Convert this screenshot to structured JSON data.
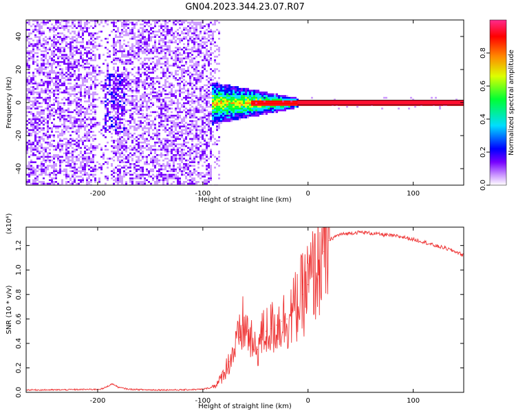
{
  "title": "GN04.2023.344.23.07.R07",
  "chart_data": [
    {
      "type": "heatmap",
      "xlabel": "Height of straight line (km)",
      "ylabel": "Frequency (Hz)",
      "xlim": [
        -268,
        148
      ],
      "ylim": [
        -50,
        50
      ],
      "x_ticks": [
        -200,
        -100,
        0,
        100
      ],
      "y_ticks": [
        -40,
        -20,
        0,
        20,
        40
      ],
      "grid": false,
      "colorbar": {
        "label": "Normalized spectral amplitude",
        "ticks": [
          0.0,
          0.2,
          0.4,
          0.6,
          0.8
        ],
        "range": [
          0,
          1
        ],
        "colors": [
          "#ffffff",
          "#cc99ff",
          "#7700ff",
          "#0000ff",
          "#00ddff",
          "#00ff33",
          "#ddff00",
          "#ff8800",
          "#ff0000",
          "#ff2a8c"
        ]
      },
      "carrier_line_hz": [
        0,
        1.5
      ],
      "band_note": "Broadband noise to about -90 km; energy converges to 0 Hz line which is steady from -10 km upward"
    },
    {
      "type": "line",
      "xlabel": "Height of straight line (km)",
      "ylabel": "SNR (10 * v/v)",
      "y_multiplier": "(x10⁴)",
      "xlim": [
        -268,
        148
      ],
      "ylim": [
        0,
        1.35
      ],
      "x_ticks": [
        -200,
        -100,
        0,
        100
      ],
      "y_ticks": [
        0.0,
        0.2,
        0.4,
        0.6,
        0.8,
        1.0,
        1.2
      ],
      "grid": false,
      "series": [
        {
          "color": "#ee3333",
          "x": [
            -268,
            -240,
            -200,
            -195,
            -186,
            -180,
            -170,
            -150,
            -120,
            -100,
            -92,
            -85,
            -80,
            -75,
            -70,
            -65,
            -62,
            -58,
            -55,
            -52,
            -48,
            -45,
            -40,
            -35,
            -30,
            -25,
            -20,
            -15,
            -10,
            -5,
            0,
            5,
            10,
            15,
            20,
            25,
            30,
            40,
            50,
            60,
            70,
            80,
            90,
            100,
            110,
            120,
            130,
            140,
            148
          ],
          "y": [
            0.02,
            0.02,
            0.025,
            0.03,
            0.07,
            0.04,
            0.025,
            0.02,
            0.02,
            0.025,
            0.04,
            0.08,
            0.16,
            0.25,
            0.35,
            0.45,
            0.55,
            0.5,
            0.45,
            0.35,
            0.35,
            0.45,
            0.5,
            0.52,
            0.55,
            0.58,
            0.6,
            0.65,
            0.72,
            0.8,
            0.88,
            0.95,
            1.05,
            1.15,
            1.24,
            1.27,
            1.29,
            1.3,
            1.31,
            1.3,
            1.29,
            1.28,
            1.27,
            1.25,
            1.23,
            1.2,
            1.18,
            1.15,
            1.12
          ]
        }
      ]
    }
  ]
}
